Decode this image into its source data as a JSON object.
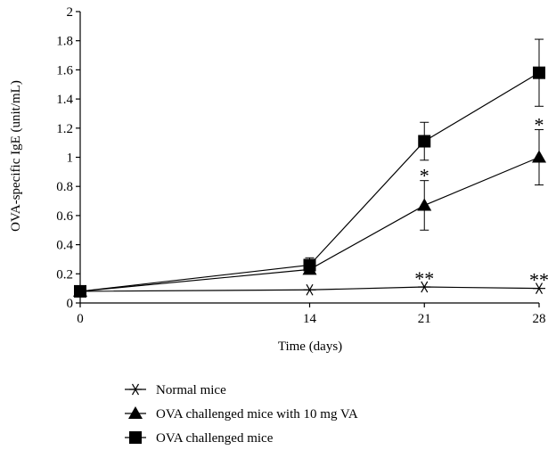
{
  "chart_data": {
    "type": "line",
    "xlabel": "Time (days)",
    "ylabel": "OVA-specific IgE (unit/mL)",
    "x": [
      0,
      14,
      21,
      28
    ],
    "xticks": [
      "0",
      "14",
      "21",
      "28"
    ],
    "xlim": [
      0,
      28
    ],
    "ylim": [
      0,
      2
    ],
    "yticks": [
      "0",
      "0.2",
      "0.4",
      "0.6",
      "0.8",
      "1",
      "1.2",
      "1.4",
      "1.6",
      "1.8",
      "2"
    ],
    "grid": false,
    "legend_position": "bottom-left",
    "series": [
      {
        "name": "Normal mice",
        "marker": "asterisk",
        "values": [
          0.08,
          0.09,
          0.11,
          0.1
        ],
        "errors": [
          0,
          0,
          0,
          0
        ],
        "annotations": [
          "",
          "",
          "**",
          "**"
        ]
      },
      {
        "name": "OVA challenged mice with 10 mg VA",
        "marker": "triangle",
        "values": [
          0.08,
          0.23,
          0.67,
          1.0
        ],
        "errors": [
          0,
          0.02,
          0.17,
          0.19
        ],
        "annotations": [
          "",
          "",
          "*",
          "*"
        ]
      },
      {
        "name": "OVA challenged mice",
        "marker": "square",
        "values": [
          0.08,
          0.26,
          1.11,
          1.58
        ],
        "errors": [
          0,
          0.05,
          0.13,
          0.23
        ],
        "annotations": [
          "",
          "",
          "",
          ""
        ]
      }
    ]
  }
}
